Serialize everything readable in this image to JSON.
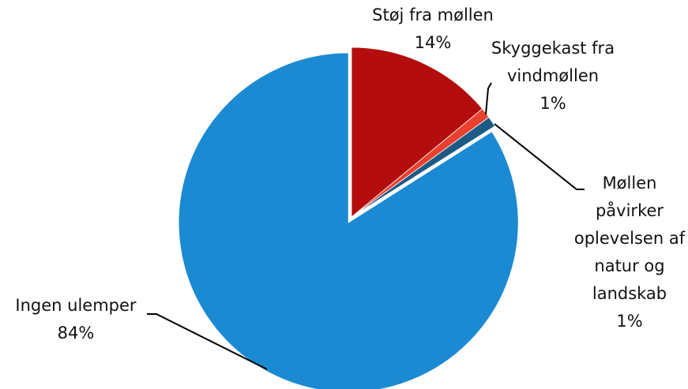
{
  "chart_data": {
    "type": "pie",
    "categories": [
      "Støj fra møllen",
      "Skyggekast fra vindmøllen",
      "Møllen påvirker oplevelsen af natur og landskab",
      "Ingen ulemper"
    ],
    "values": [
      14,
      1,
      1,
      84
    ],
    "value_labels": [
      "14%",
      "1%",
      "1%",
      "84%"
    ],
    "colors": [
      "#b30d0d",
      "#e8402c",
      "#1d5a86",
      "#1b8ad2"
    ]
  }
}
